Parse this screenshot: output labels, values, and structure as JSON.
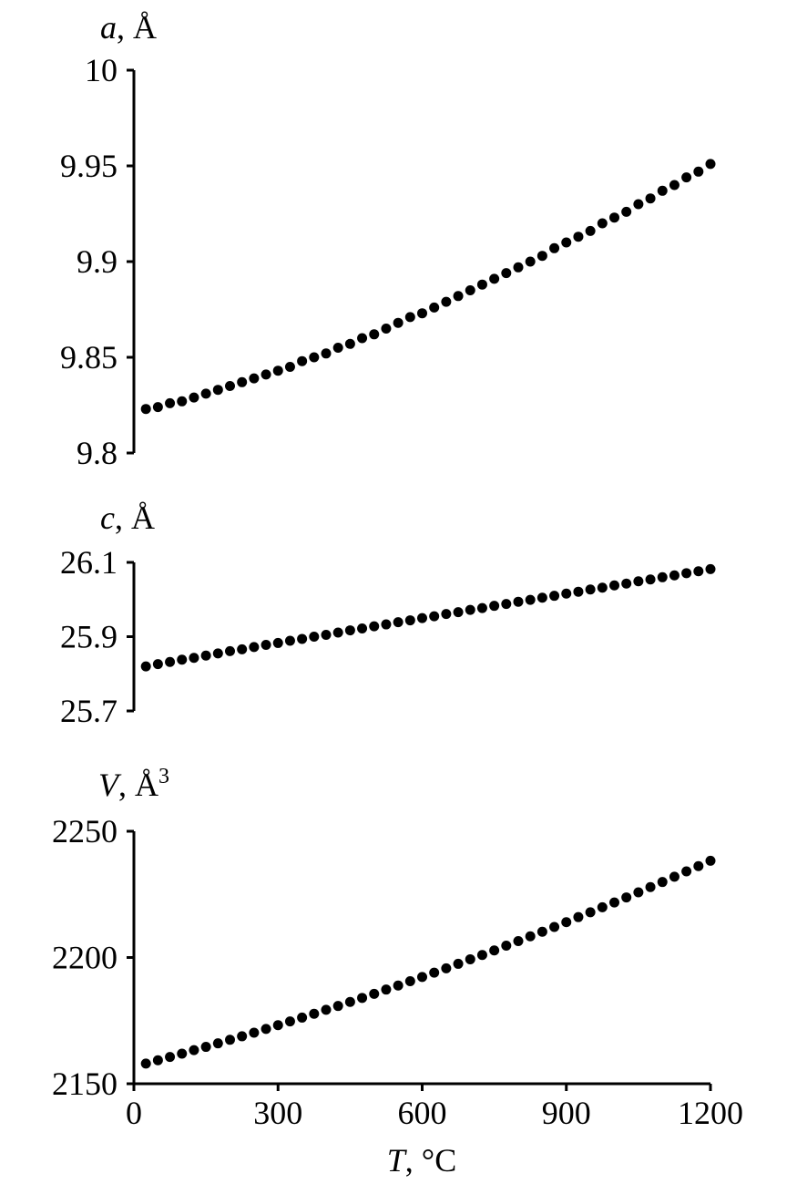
{
  "chart_data": [
    {
      "type": "scatter",
      "ylabel_symbol": "a",
      "ylabel_unit": ", Å",
      "ylim": [
        9.8,
        10.0
      ],
      "yticks": [
        9.8,
        9.85,
        9.9,
        9.95,
        10.0
      ],
      "ytick_labels": [
        "9.8",
        "9.85",
        "9.9",
        "9.95",
        "10"
      ],
      "xlim": [
        0,
        1200
      ],
      "series": [
        {
          "x": [
            25,
            50,
            75,
            100,
            125,
            150,
            175,
            200,
            225,
            250,
            275,
            300,
            325,
            350,
            375,
            400,
            425,
            450,
            475,
            500,
            525,
            550,
            575,
            600,
            625,
            650,
            675,
            700,
            725,
            750,
            775,
            800,
            825,
            850,
            875,
            900,
            925,
            950,
            975,
            1000,
            1025,
            1050,
            1075,
            1100,
            1125,
            1150,
            1175,
            1200
          ],
          "y": [
            9.823,
            9.824,
            9.826,
            9.827,
            9.829,
            9.831,
            9.833,
            9.835,
            9.837,
            9.839,
            9.841,
            9.843,
            9.845,
            9.848,
            9.85,
            9.852,
            9.855,
            9.857,
            9.86,
            9.862,
            9.865,
            9.868,
            9.871,
            9.873,
            9.876,
            9.879,
            9.882,
            9.885,
            9.888,
            9.891,
            9.894,
            9.897,
            9.9,
            9.903,
            9.907,
            9.91,
            9.913,
            9.916,
            9.92,
            9.923,
            9.926,
            9.93,
            9.933,
            9.937,
            9.94,
            9.944,
            9.947,
            9.951
          ]
        }
      ],
      "marker": "filled circle",
      "grid": false
    },
    {
      "type": "scatter",
      "ylabel_symbol": "c",
      "ylabel_unit": ", Å",
      "ylim": [
        25.7,
        26.1
      ],
      "yticks": [
        25.7,
        25.9,
        26.1
      ],
      "ytick_labels": [
        "25.7",
        "25.9",
        "26.1"
      ],
      "xlim": [
        0,
        1200
      ],
      "series": [
        {
          "x": [
            25,
            50,
            75,
            100,
            125,
            150,
            175,
            200,
            225,
            250,
            275,
            300,
            325,
            350,
            375,
            400,
            425,
            450,
            475,
            500,
            525,
            550,
            575,
            600,
            625,
            650,
            675,
            700,
            725,
            750,
            775,
            800,
            825,
            850,
            875,
            900,
            925,
            950,
            975,
            1000,
            1025,
            1050,
            1075,
            1100,
            1125,
            1150,
            1175,
            1200
          ],
          "y": [
            25.82,
            25.826,
            25.832,
            25.838,
            25.843,
            25.849,
            25.855,
            25.861,
            25.866,
            25.872,
            25.878,
            25.883,
            25.889,
            25.894,
            25.9,
            25.905,
            25.911,
            25.917,
            25.922,
            25.928,
            25.933,
            25.939,
            25.944,
            25.95,
            25.955,
            25.961,
            25.966,
            25.972,
            25.977,
            25.983,
            25.988,
            25.994,
            25.999,
            26.005,
            26.01,
            26.016,
            26.021,
            26.027,
            26.032,
            26.038,
            26.043,
            26.049,
            26.054,
            26.06,
            26.065,
            26.071,
            26.076,
            26.082
          ]
        }
      ],
      "marker": "filled circle",
      "grid": false
    },
    {
      "type": "scatter",
      "ylabel_symbol": "V",
      "ylabel_unit": ", Å",
      "ylabel_sup": "3",
      "ylim": [
        2150,
        2250
      ],
      "yticks": [
        2150,
        2200,
        2250
      ],
      "ytick_labels": [
        "2150",
        "2200",
        "2250"
      ],
      "xlim": [
        0,
        1200
      ],
      "xticks": [
        0,
        300,
        600,
        900,
        1200
      ],
      "xtick_labels": [
        "0",
        "300",
        "600",
        "900",
        "1200"
      ],
      "xlabel_symbol": "T",
      "xlabel_unit": ", °C",
      "series": [
        {
          "x": [
            25,
            50,
            75,
            100,
            125,
            150,
            175,
            200,
            225,
            250,
            275,
            300,
            325,
            350,
            375,
            400,
            425,
            450,
            475,
            500,
            525,
            550,
            575,
            600,
            625,
            650,
            675,
            700,
            725,
            750,
            775,
            800,
            825,
            850,
            875,
            900,
            925,
            950,
            975,
            1000,
            1025,
            1050,
            1075,
            1100,
            1125,
            1150,
            1175,
            1200
          ],
          "y": [
            2158,
            2159.3,
            2160.6,
            2161.9,
            2163.3,
            2164.6,
            2166.0,
            2167.4,
            2168.8,
            2170.2,
            2171.7,
            2173.2,
            2174.7,
            2176.2,
            2177.7,
            2179.3,
            2180.8,
            2182.4,
            2184.0,
            2185.6,
            2187.3,
            2188.9,
            2190.6,
            2192.3,
            2194.0,
            2195.7,
            2197.5,
            2199.3,
            2201.0,
            2202.8,
            2204.7,
            2206.5,
            2208.4,
            2210.2,
            2212.1,
            2214.0,
            2216.0,
            2217.9,
            2219.9,
            2221.8,
            2223.8,
            2225.8,
            2227.9,
            2229.9,
            2232.0,
            2234.1,
            2236.2,
            2238.3
          ]
        }
      ],
      "marker": "filled circle",
      "grid": false
    }
  ]
}
